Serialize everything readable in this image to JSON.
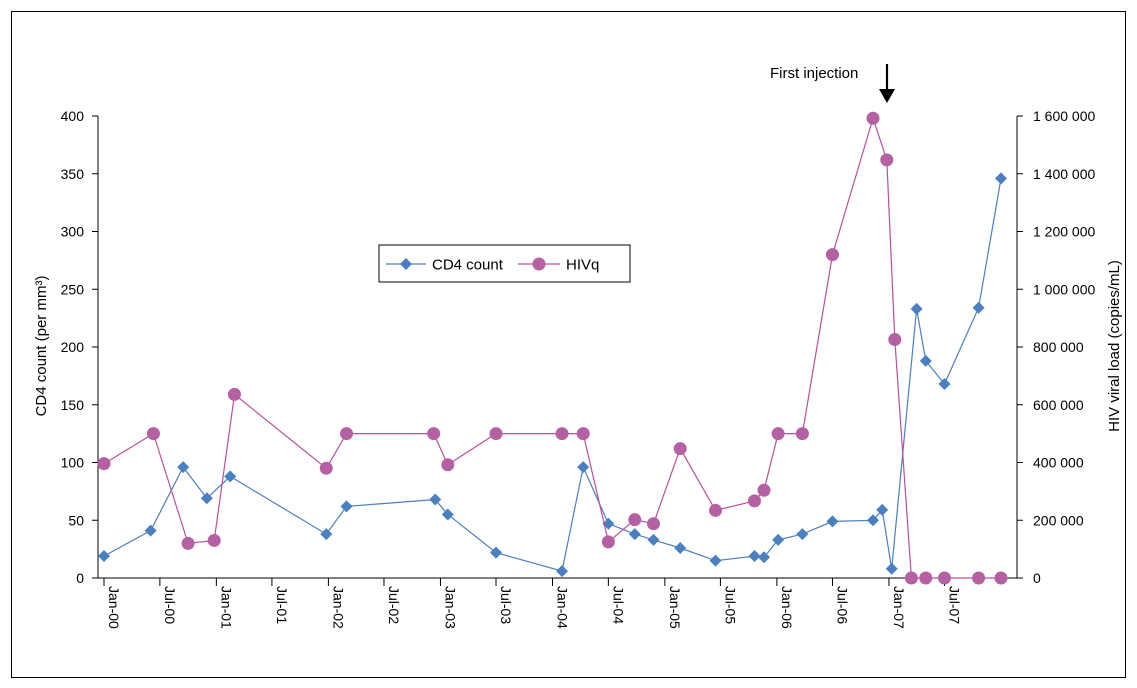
{
  "chart_data": {
    "type": "line",
    "x_type": "date",
    "x_ticks": [
      "Jan-00",
      "Jul-00",
      "Jan-01",
      "Jul-01",
      "Jan-02",
      "Jul-02",
      "Jan-03",
      "Jul-03",
      "Jan-04",
      "Jul-04",
      "Jan-05",
      "Jul-05",
      "Jan-06",
      "Jul-06",
      "Jan-07",
      "Jul-07"
    ],
    "y_left": {
      "label": "CD4 count (per mm³)",
      "range": [
        0,
        400
      ],
      "ticks": [
        0,
        50,
        100,
        150,
        200,
        250,
        300,
        350,
        400
      ],
      "tick_labels": [
        "0",
        "50",
        "100",
        "150",
        "200",
        "250",
        "300",
        "350",
        "400"
      ]
    },
    "y_right": {
      "label": "HIV viral load (copies/mL)",
      "range": [
        0,
        1600000
      ],
      "ticks": [
        0,
        200000,
        400000,
        600000,
        800000,
        1000000,
        1200000,
        1400000,
        1600000
      ],
      "tick_labels": [
        "0",
        "200 000",
        "400 000",
        "600 000",
        "800 000",
        "1 000 000",
        "1 200 000",
        "1 400 000",
        "1 600 000"
      ]
    },
    "legend": {
      "position": "center-left",
      "entries": [
        "CD4 count",
        "HIVq"
      ]
    },
    "annotation": {
      "text": "First injection",
      "x": "2006-11-20"
    },
    "series": [
      {
        "name": "CD4 count",
        "axis": "left",
        "color": "#4a7fc0",
        "marker": "diamond",
        "points": [
          [
            "2000-01-01",
            19
          ],
          [
            "2000-06-01",
            41
          ],
          [
            "2000-09-15",
            96
          ],
          [
            "2000-12-01",
            69
          ],
          [
            "2001-02-15",
            88
          ],
          [
            "2001-12-25",
            38
          ],
          [
            "2002-03-01",
            62
          ],
          [
            "2002-12-15",
            68
          ],
          [
            "2003-01-25",
            55
          ],
          [
            "2003-07-01",
            22
          ],
          [
            "2004-02-01",
            6
          ],
          [
            "2004-04-10",
            96
          ],
          [
            "2004-07-01",
            47
          ],
          [
            "2004-09-25",
            38
          ],
          [
            "2004-11-25",
            33
          ],
          [
            "2005-02-20",
            26
          ],
          [
            "2005-06-15",
            15
          ],
          [
            "2005-10-20",
            19
          ],
          [
            "2005-11-20",
            18
          ],
          [
            "2006-01-05",
            33
          ],
          [
            "2006-03-25",
            38
          ],
          [
            "2006-07-01",
            49
          ],
          [
            "2006-11-10",
            50
          ],
          [
            "2006-12-10",
            59
          ],
          [
            "2007-01-10",
            8
          ],
          [
            "2007-04-01",
            233
          ],
          [
            "2007-05-01",
            188
          ],
          [
            "2007-07-01",
            168
          ],
          [
            "2007-10-20",
            234
          ],
          [
            "2008-01-01",
            346
          ]
        ]
      },
      {
        "name": "HIVq",
        "axis": "right",
        "color": "#b9509a",
        "marker_color": "#b660a4",
        "marker": "circle",
        "points": [
          [
            "2000-01-01",
            396000
          ],
          [
            "2000-06-10",
            500000
          ],
          [
            "2000-10-01",
            120000
          ],
          [
            "2000-12-25",
            130000
          ],
          [
            "2001-03-01",
            636000
          ],
          [
            "2001-12-25",
            380000
          ],
          [
            "2002-03-01",
            500000
          ],
          [
            "2002-12-10",
            500000
          ],
          [
            "2003-01-25",
            392000
          ],
          [
            "2003-07-01",
            500000
          ],
          [
            "2004-02-01",
            500000
          ],
          [
            "2004-04-10",
            500000
          ],
          [
            "2004-07-01",
            125000
          ],
          [
            "2004-09-25",
            202000
          ],
          [
            "2004-11-25",
            188000
          ],
          [
            "2005-02-20",
            448000
          ],
          [
            "2005-06-15",
            234000
          ],
          [
            "2005-10-20",
            267000
          ],
          [
            "2005-11-20",
            304000
          ],
          [
            "2006-01-05",
            500000
          ],
          [
            "2006-03-25",
            500000
          ],
          [
            "2006-07-01",
            1120000
          ],
          [
            "2006-11-10",
            1592000
          ],
          [
            "2006-12-25",
            1448000
          ],
          [
            "2007-01-20",
            826000
          ],
          [
            "2007-03-15",
            0
          ],
          [
            "2007-05-01",
            0
          ],
          [
            "2007-07-01",
            0
          ],
          [
            "2007-10-20",
            0
          ],
          [
            "2008-01-01",
            0
          ]
        ]
      }
    ]
  }
}
